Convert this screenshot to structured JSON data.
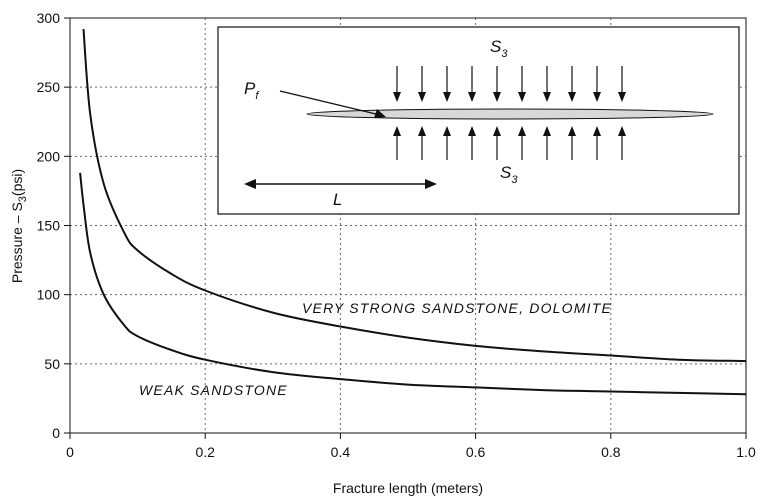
{
  "chart_data": {
    "type": "line",
    "xlabel": "Fracture length (meters)",
    "ylabel": "Pressure – S",
    "ylabel_sub": "3",
    "ylabel_tail": "(psi)",
    "xlim": [
      0,
      1.0
    ],
    "ylim": [
      0,
      300
    ],
    "x_ticks": [
      "0",
      "0.2",
      "0.4",
      "0.6",
      "0.8",
      "1.0"
    ],
    "y_ticks": [
      "0",
      "50",
      "100",
      "150",
      "200",
      "250",
      "300"
    ],
    "grid": "dotted",
    "series": [
      {
        "name": "VERY STRONG SANDSTONE, DOLOMITE",
        "x": [
          0.02,
          0.03,
          0.05,
          0.08,
          0.1,
          0.15,
          0.2,
          0.3,
          0.4,
          0.5,
          0.6,
          0.7,
          0.8,
          0.9,
          1.0
        ],
        "y": [
          292,
          230,
          180,
          145,
          132,
          115,
          103,
          87,
          77,
          69,
          63,
          59,
          56,
          53,
          52
        ]
      },
      {
        "name": "WEAK SANDSTONE",
        "x": [
          0.015,
          0.02,
          0.03,
          0.05,
          0.08,
          0.1,
          0.15,
          0.2,
          0.3,
          0.4,
          0.5,
          0.6,
          0.7,
          0.8,
          0.9,
          1.0
        ],
        "y": [
          188,
          165,
          130,
          100,
          78,
          70,
          60,
          53,
          44,
          39,
          35,
          33,
          31,
          30,
          29,
          28
        ]
      }
    ],
    "annotations": {
      "strong": "VERY STRONG SANDSTONE, DOLOMITE",
      "weak": "WEAK SANDSTONE"
    },
    "inset": {
      "s3_top": "S",
      "s3_top_sub": "3",
      "s3_bottom": "S",
      "s3_bottom_sub": "3",
      "pf": "P",
      "pf_sub": "f",
      "length": "L"
    }
  }
}
